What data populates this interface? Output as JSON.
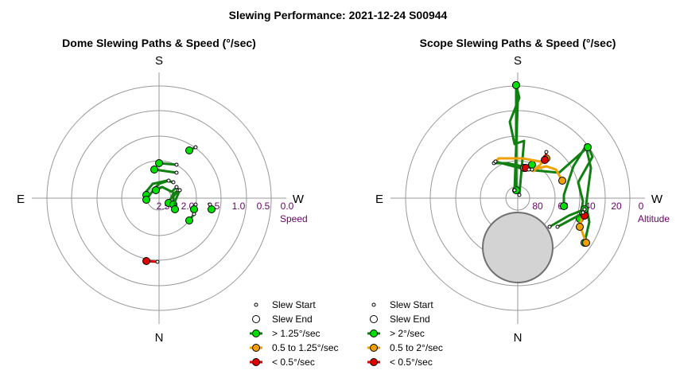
{
  "title": "Slewing Performance: 2021-12-24 S00944",
  "colors": {
    "green": "#00e000",
    "green_line": "#108010",
    "orange": "#f0a000",
    "orange_line": "#f0a000",
    "red": "#e00000",
    "red_line": "#e00000",
    "grid": "#999999",
    "tick": "#6a006a",
    "zenith_fill": "#d3d3d3"
  },
  "chart_data": [
    {
      "type": "polar",
      "subtitle": "Dome Slewing Paths & Speed (°/sec)",
      "compass": {
        "top": "S",
        "bottom": "N",
        "left": "E",
        "right": "W"
      },
      "radial_axis": {
        "name": "Speed",
        "ticks": [
          "2.5",
          "2.0",
          "1.5",
          "1.0",
          "0.5",
          "0.0"
        ],
        "inverted": true,
        "range": [
          0.0,
          3.0
        ]
      },
      "slews": [
        {
          "category": "slow",
          "points": [
            [
              -2,
              80
            ],
            [
              -16,
              79
            ]
          ]
        },
        {
          "category": "fast",
          "points": [
            [
              46,
              -64
            ],
            [
              38,
              -60
            ]
          ]
        },
        {
          "category": "fast",
          "points": [
            [
              22,
              -42
            ],
            [
              0,
              -44
            ]
          ]
        },
        {
          "category": "fast",
          "points": [
            [
              22,
              -32
            ],
            [
              -6,
              -36
            ]
          ]
        },
        {
          "category": "fast",
          "points": [
            [
              18,
              -20
            ],
            [
              10,
              -22
            ],
            [
              -8,
              -18
            ],
            [
              -18,
              -6
            ],
            [
              -16,
              -4
            ]
          ]
        },
        {
          "category": "fast",
          "points": [
            [
              12,
              -22
            ],
            [
              0,
              -18
            ],
            [
              -6,
              -12
            ],
            [
              -16,
              2
            ]
          ]
        },
        {
          "category": "fast",
          "points": [
            [
              22,
              -14
            ],
            [
              16,
              -8
            ],
            [
              4,
              -14
            ],
            [
              -4,
              -10
            ]
          ]
        },
        {
          "category": "fast",
          "points": [
            [
              26,
              -10
            ],
            [
              18,
              -6
            ],
            [
              12,
              6
            ]
          ]
        },
        {
          "category": "fast",
          "points": [
            [
              24,
              -10
            ],
            [
              18,
              -2
            ],
            [
              18,
              8
            ]
          ]
        },
        {
          "category": "fast",
          "points": [
            [
              26,
              -10
            ],
            [
              20,
              4
            ],
            [
              20,
              14
            ]
          ]
        },
        {
          "category": "fast",
          "points": [
            [
              46,
              8
            ],
            [
              44,
              14
            ]
          ]
        },
        {
          "category": "fast",
          "points": [
            [
              64,
              8
            ],
            [
              66,
              14
            ]
          ]
        },
        {
          "category": "fast",
          "points": [
            [
              44,
              20
            ],
            [
              38,
              28
            ]
          ]
        }
      ],
      "legend": [
        {
          "key": "start",
          "label": "Slew Start"
        },
        {
          "key": "end",
          "label": "Slew End"
        },
        {
          "key": "fast",
          "label": "> 1.25°/sec"
        },
        {
          "key": "medium",
          "label": "0.5 to 1.25°/sec"
        },
        {
          "key": "slow",
          "label": "< 0.5°/sec"
        }
      ]
    },
    {
      "type": "polar",
      "subtitle": "Scope Slewing Paths & Speed (°/sec)",
      "compass": {
        "top": "S",
        "bottom": "N",
        "left": "E",
        "right": "W"
      },
      "radial_axis": {
        "name": "Altitude",
        "ticks": [
          "80",
          "60",
          "40",
          "20",
          "0"
        ],
        "range": [
          90,
          0
        ]
      },
      "zenith_limit": {
        "center": [
          0,
          62
        ],
        "radius": 44
      },
      "slews": [
        {
          "category": "fast",
          "points": [
            [
              2,
              -4
            ],
            [
              8,
              -72
            ],
            [
              -4,
              -68
            ],
            [
              -10,
              -96
            ],
            [
              2,
              -126
            ],
            [
              -2,
              -142
            ]
          ]
        },
        {
          "category": "fast",
          "points": [
            [
              -2,
              -142
            ],
            [
              -2,
              -10
            ]
          ]
        },
        {
          "category": "fast",
          "points": [
            [
              -4,
              -10
            ],
            [
              0,
              -120
            ],
            [
              -2,
              -142
            ]
          ]
        },
        {
          "category": "fast",
          "points": [
            [
              88,
              -66
            ],
            [
              94,
              -52
            ],
            [
              76,
              -20
            ],
            [
              82,
              4
            ],
            [
              80,
              16
            ],
            [
              78,
              26
            ]
          ]
        },
        {
          "category": "fast",
          "points": [
            [
              86,
              -66
            ],
            [
              70,
              -40
            ],
            [
              58,
              -4
            ],
            [
              58,
              10
            ]
          ]
        },
        {
          "category": "fast",
          "points": [
            [
              86,
              -64
            ],
            [
              92,
              -38
            ],
            [
              86,
              8
            ],
            [
              90,
              30
            ],
            [
              84,
              56
            ]
          ]
        },
        {
          "category": "fast",
          "points": [
            [
              -30,
              -44
            ],
            [
              -14,
              -44
            ],
            [
              6,
              -40
            ],
            [
              18,
              -42
            ]
          ]
        },
        {
          "category": "fast",
          "points": [
            [
              -28,
              -46
            ],
            [
              10,
              -36
            ],
            [
              52,
              -32
            ],
            [
              88,
              -64
            ]
          ]
        },
        {
          "category": "fast",
          "points": [
            [
              50,
              36
            ],
            [
              80,
              20
            ],
            [
              82,
              18
            ]
          ]
        },
        {
          "category": "fast",
          "points": [
            [
              40,
              36
            ],
            [
              64,
              22
            ],
            [
              84,
              14
            ]
          ]
        },
        {
          "category": "medium",
          "points": [
            [
              -28,
              -46
            ],
            [
              -24,
              -50
            ],
            [
              6,
              -50
            ],
            [
              28,
              -46
            ],
            [
              36,
              -50
            ]
          ]
        },
        {
          "category": "medium",
          "points": [
            [
              36,
              -50
            ],
            [
              20,
              -34
            ],
            [
              8,
              -38
            ]
          ]
        },
        {
          "category": "medium",
          "points": [
            [
              18,
              -36
            ],
            [
              36,
              -40
            ],
            [
              48,
              -36
            ],
            [
              56,
              -22
            ]
          ]
        },
        {
          "category": "medium",
          "points": [
            [
              82,
              18
            ],
            [
              78,
              34
            ],
            [
              86,
              56
            ]
          ]
        },
        {
          "category": "medium",
          "points": [
            [
              84,
              14
            ],
            [
              78,
              36
            ]
          ]
        },
        {
          "category": "slow",
          "points": [
            [
              36,
              -58
            ],
            [
              34,
              -48
            ]
          ]
        },
        {
          "category": "slow",
          "points": [
            [
              14,
              -36
            ],
            [
              10,
              -38
            ]
          ]
        },
        {
          "category": "slow",
          "points": [
            [
              82,
              18
            ],
            [
              84,
              22
            ]
          ]
        }
      ],
      "legend": [
        {
          "key": "start",
          "label": "Slew Start"
        },
        {
          "key": "end",
          "label": "Slew End"
        },
        {
          "key": "fast",
          "label": "> 2°/sec"
        },
        {
          "key": "medium",
          "label": "0.5 to 2°/sec"
        },
        {
          "key": "slow",
          "label": "< 0.5°/sec"
        }
      ]
    }
  ]
}
